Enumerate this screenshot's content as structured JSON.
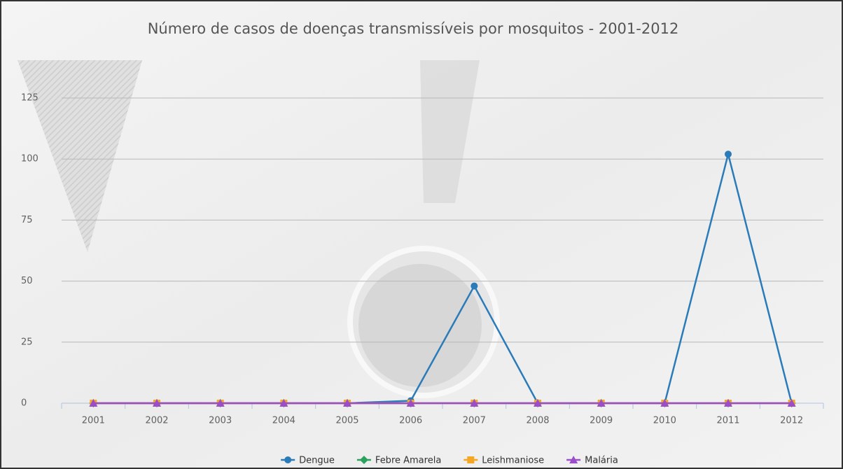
{
  "chart_data": {
    "type": "line",
    "title": "Número de casos de doenças transmissíveis por mosquitos - 2001-2012",
    "categories": [
      "2001",
      "2002",
      "2003",
      "2004",
      "2005",
      "2006",
      "2007",
      "2008",
      "2009",
      "2010",
      "2011",
      "2012"
    ],
    "series": [
      {
        "name": "Dengue",
        "color": "#2b7bb9",
        "marker": "circle",
        "values": [
          0,
          0,
          0,
          0,
          0,
          1,
          48,
          0,
          0,
          0,
          102,
          0
        ]
      },
      {
        "name": "Febre Amarela",
        "color": "#2ca25f",
        "marker": "diamond",
        "values": [
          0,
          0,
          0,
          0,
          0,
          0,
          0,
          0,
          0,
          0,
          0,
          0
        ]
      },
      {
        "name": "Leishmaniose",
        "color": "#f5a623",
        "marker": "square",
        "values": [
          0,
          0,
          0,
          0,
          0,
          0,
          0,
          0,
          0,
          0,
          0,
          0
        ]
      },
      {
        "name": "Malária",
        "color": "#9b4dca",
        "marker": "triangle",
        "values": [
          0,
          0,
          0,
          0,
          0,
          0,
          0,
          0,
          0,
          0,
          0,
          0
        ]
      }
    ],
    "ylim": [
      0,
      125
    ],
    "yticks": [
      0,
      25,
      50,
      75,
      100,
      125
    ],
    "grid": true
  }
}
